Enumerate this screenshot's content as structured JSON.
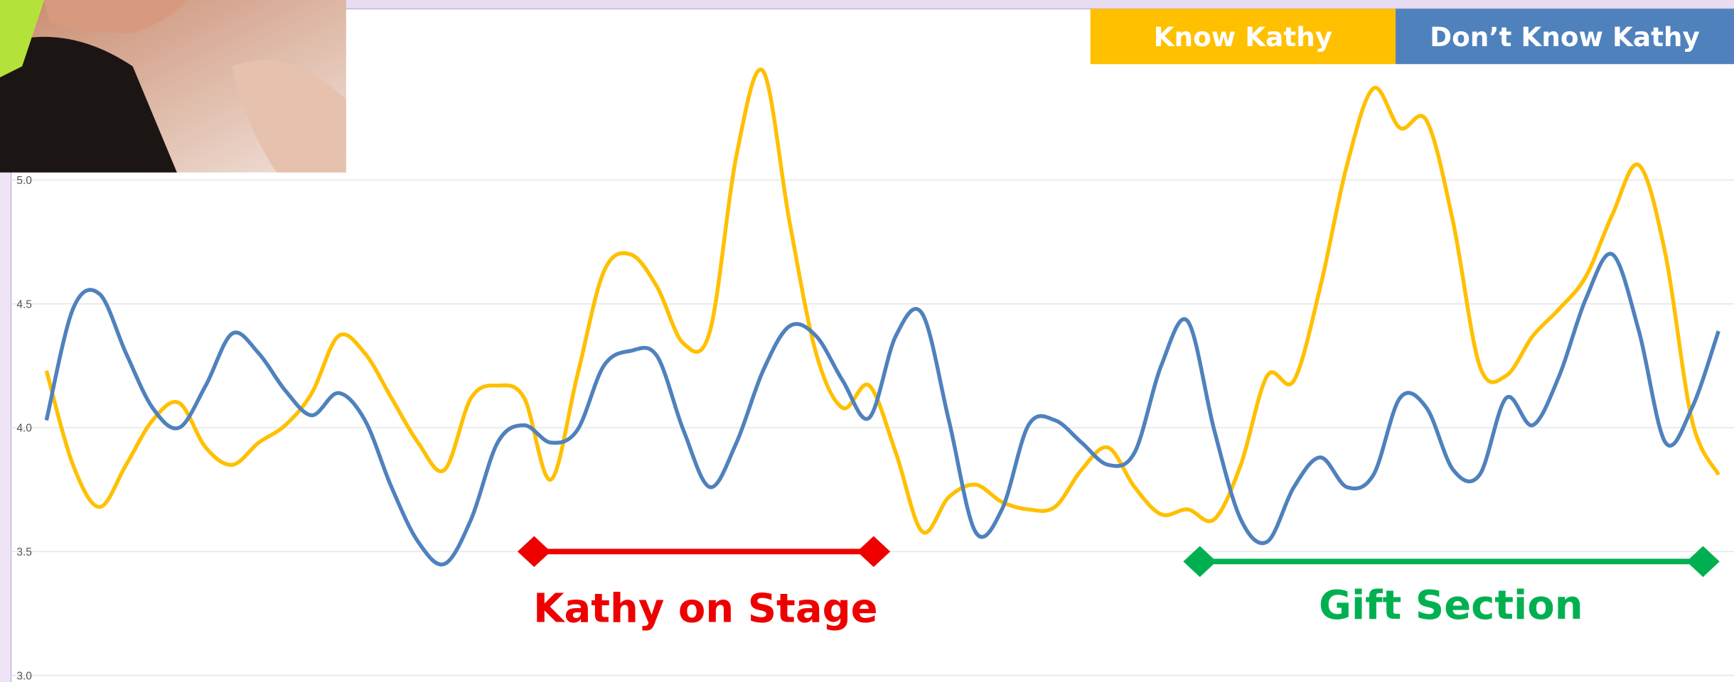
{
  "chart_data": {
    "type": "line",
    "ylim": [
      3.0,
      5.7
    ],
    "yticks": [
      {
        "value": 3.0,
        "label": "3.0"
      },
      {
        "value": 3.5,
        "label": "3.5"
      },
      {
        "value": 4.0,
        "label": "4.0"
      },
      {
        "value": 4.5,
        "label": "4.5"
      },
      {
        "value": 5.0,
        "label": "5.0"
      }
    ],
    "grid": true,
    "series": [
      {
        "name": "Know Kathy",
        "color": "#ffc000",
        "values": [
          4.23,
          3.85,
          3.68,
          3.85,
          4.03,
          4.1,
          3.92,
          3.85,
          3.94,
          4.01,
          4.14,
          4.37,
          4.3,
          4.12,
          3.94,
          3.83,
          4.12,
          4.17,
          4.12,
          3.79,
          4.21,
          4.63,
          4.7,
          4.57,
          4.34,
          4.39,
          5.1,
          5.44,
          4.83,
          4.3,
          4.08,
          4.17,
          3.9,
          3.58,
          3.72,
          3.77,
          3.7,
          3.67,
          3.68,
          3.83,
          3.92,
          3.76,
          3.65,
          3.67,
          3.63,
          3.85,
          4.21,
          4.19,
          4.57,
          5.06,
          5.37,
          5.21,
          5.24,
          4.83,
          4.25,
          4.21,
          4.37,
          4.48,
          4.61,
          4.86,
          5.06,
          4.7,
          4.03,
          3.81
        ]
      },
      {
        "name": "Don’t Know Kathy",
        "color": "#4f81bd",
        "values": [
          4.03,
          4.48,
          4.54,
          4.3,
          4.08,
          4.0,
          4.17,
          4.38,
          4.3,
          4.15,
          4.05,
          4.14,
          4.03,
          3.76,
          3.54,
          3.45,
          3.63,
          3.94,
          4.01,
          3.94,
          3.99,
          4.25,
          4.31,
          4.29,
          3.99,
          3.76,
          3.94,
          4.23,
          4.41,
          4.37,
          4.19,
          4.04,
          4.37,
          4.46,
          4.03,
          3.58,
          3.67,
          4.01,
          4.03,
          3.94,
          3.85,
          3.9,
          4.25,
          4.43,
          3.99,
          3.63,
          3.54,
          3.76,
          3.88,
          3.76,
          3.81,
          4.12,
          4.08,
          3.83,
          3.81,
          4.12,
          4.01,
          4.21,
          4.52,
          4.7,
          4.39,
          3.94,
          4.08,
          4.39
        ]
      }
    ],
    "annotations": [
      {
        "text": "Kathy on Stage",
        "color": "#ee0000"
      },
      {
        "text": "Gift Section",
        "color": "#00b050"
      }
    ]
  }
}
